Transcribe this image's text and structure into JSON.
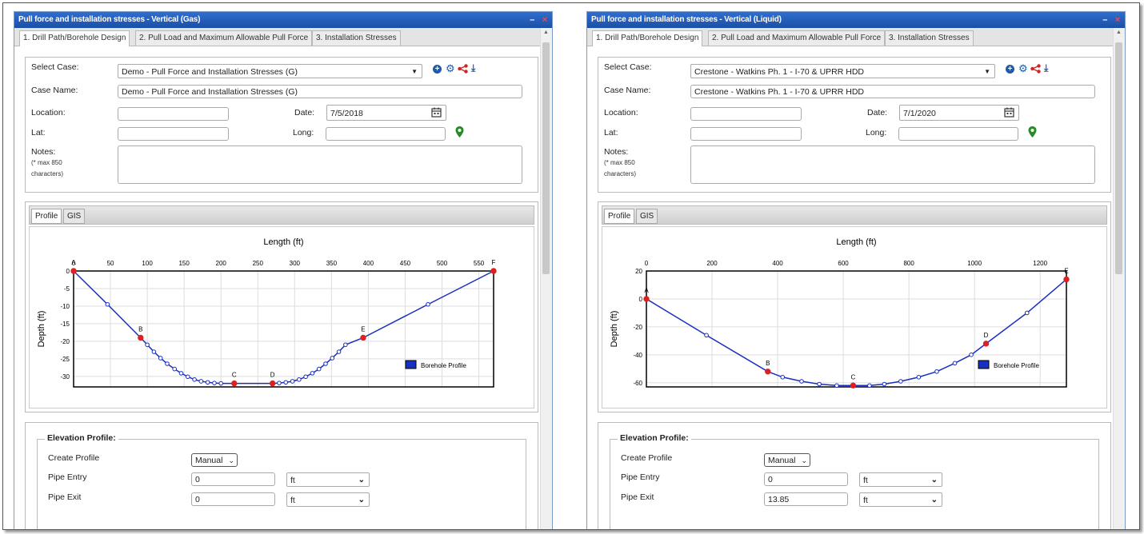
{
  "windows": [
    {
      "id": "left",
      "title": "Pull force and installation stresses - Vertical (Gas)",
      "tabs": [
        "1. Drill Path/Borehole Design",
        "2. Pull Load and Maximum Allowable Pull Force",
        "3. Installation Stresses"
      ],
      "form": {
        "select_case_label": "Select Case:",
        "select_case_value": "Demo - Pull Force and Installation Stresses (G)",
        "case_name_label": "Case Name:",
        "case_name_value": "Demo - Pull Force and Installation Stresses (G)",
        "location_label": "Location:",
        "location_value": "",
        "date_label": "Date:",
        "date_value": "7/5/2018",
        "lat_label": "Lat:",
        "lat_value": "",
        "long_label": "Long:",
        "long_value": "",
        "notes_label": "Notes:",
        "notes_hint_1": "(* max 850",
        "notes_hint_2": "characters)",
        "notes_value": ""
      },
      "chart_tabs": [
        "Profile",
        "GIS"
      ],
      "elevation": {
        "title": "Elevation Profile:",
        "create_profile_label": "Create Profile",
        "create_profile_value": "Manual",
        "pipe_entry_label": "Pipe Entry",
        "pipe_entry_value": "0",
        "pipe_entry_unit": "ft",
        "pipe_exit_label": "Pipe Exit",
        "pipe_exit_value": "0",
        "pipe_exit_unit": "ft"
      }
    },
    {
      "id": "right",
      "title": "Pull force and installation stresses - Vertical (Liquid)",
      "tabs": [
        "1. Drill Path/Borehole Design",
        "2. Pull Load and Maximum Allowable Pull Force",
        "3. Installation Stresses"
      ],
      "form": {
        "select_case_label": "Select Case:",
        "select_case_value": "Crestone - Watkins Ph. 1 - I-70 & UPRR HDD",
        "case_name_label": "Case Name:",
        "case_name_value": "Crestone - Watkins Ph. 1 - I-70 &  UPRR HDD",
        "location_label": "Location:",
        "location_value": "",
        "date_label": "Date:",
        "date_value": "7/1/2020",
        "lat_label": "Lat:",
        "lat_value": "",
        "long_label": "Long:",
        "long_value": "",
        "notes_label": "Notes:",
        "notes_hint_1": "(* max 850",
        "notes_hint_2": "characters)",
        "notes_value": ""
      },
      "chart_tabs": [
        "Profile",
        "GIS"
      ],
      "elevation": {
        "title": "Elevation Profile:",
        "create_profile_label": "Create Profile",
        "create_profile_value": "Manual",
        "pipe_entry_label": "Pipe Entry",
        "pipe_entry_value": "0",
        "pipe_entry_unit": "ft",
        "pipe_exit_label": "Pipe Exit",
        "pipe_exit_value": "13.85",
        "pipe_exit_unit": "ft"
      }
    }
  ],
  "chart_data": [
    {
      "type": "line",
      "title": "Length (ft)",
      "xlabel": "Length (ft)",
      "ylabel": "Depth (ft)",
      "xlim": [
        0,
        570
      ],
      "ylim": [
        -33,
        0
      ],
      "x_ticks": [
        0,
        50,
        100,
        150,
        200,
        250,
        300,
        350,
        400,
        450,
        500,
        550
      ],
      "y_ticks": [
        0,
        -5,
        -10,
        -15,
        -20,
        -25,
        -30
      ],
      "grid": true,
      "legend": "Borehole Profile",
      "legend_position": "bottom-right",
      "colors": {
        "line": "#1a2fbf",
        "point": "#1a2fbf",
        "key_point": "#e02020"
      },
      "series": [
        {
          "name": "Borehole Profile",
          "points": [
            [
              0,
              0
            ],
            [
              46,
              -9.5
            ],
            [
              91,
              -19
            ],
            [
              100,
              -21
            ],
            [
              109,
              -23
            ],
            [
              118,
              -24.8
            ],
            [
              127,
              -26.4
            ],
            [
              137,
              -27.9
            ],
            [
              146,
              -29.1
            ],
            [
              155,
              -30.1
            ],
            [
              164,
              -30.9
            ],
            [
              173,
              -31.4
            ],
            [
              182,
              -31.7
            ],
            [
              191,
              -31.9
            ],
            [
              200,
              -32
            ],
            [
              218,
              -32
            ],
            [
              270,
              -32
            ],
            [
              279,
              -31.9
            ],
            [
              288,
              -31.7
            ],
            [
              297,
              -31.4
            ],
            [
              306,
              -30.9
            ],
            [
              315,
              -30.1
            ],
            [
              324,
              -29.1
            ],
            [
              333,
              -27.9
            ],
            [
              342,
              -26.4
            ],
            [
              351,
              -24.8
            ],
            [
              360,
              -23
            ],
            [
              369,
              -21
            ],
            [
              393,
              -19
            ],
            [
              481,
              -9.5
            ],
            [
              570,
              0
            ]
          ]
        }
      ],
      "key_points": [
        {
          "label": "A",
          "x": 0,
          "y": 0
        },
        {
          "label": "B",
          "x": 91,
          "y": -19
        },
        {
          "label": "C",
          "x": 218,
          "y": -32
        },
        {
          "label": "D",
          "x": 270,
          "y": -32
        },
        {
          "label": "E",
          "x": 393,
          "y": -19
        },
        {
          "label": "F",
          "x": 570,
          "y": 0
        }
      ]
    },
    {
      "type": "line",
      "title": "Length (ft)",
      "xlabel": "Length (ft)",
      "ylabel": "Depth (ft)",
      "xlim": [
        0,
        1280
      ],
      "ylim": [
        -63,
        20
      ],
      "x_ticks": [
        0,
        200,
        400,
        600,
        800,
        1000,
        1200
      ],
      "y_ticks": [
        20,
        0,
        -20,
        -40,
        -60
      ],
      "grid": true,
      "legend": "Borehole Profile",
      "legend_position": "bottom-right",
      "colors": {
        "line": "#1a2fbf",
        "point": "#1a2fbf",
        "key_point": "#e02020"
      },
      "series": [
        {
          "name": "Borehole Profile",
          "points": [
            [
              0,
              0
            ],
            [
              183,
              -26
            ],
            [
              370,
              -52
            ],
            [
              415,
              -56
            ],
            [
              473,
              -59
            ],
            [
              527,
              -61
            ],
            [
              580,
              -62
            ],
            [
              630,
              -62
            ],
            [
              680,
              -62
            ],
            [
              725,
              -61
            ],
            [
              775,
              -59
            ],
            [
              830,
              -56
            ],
            [
              885,
              -52
            ],
            [
              940,
              -46
            ],
            [
              990,
              -40
            ],
            [
              1035,
              -32
            ],
            [
              1160,
              -10
            ],
            [
              1280,
              14
            ]
          ]
        }
      ],
      "key_points": [
        {
          "label": "A",
          "x": 0,
          "y": 0
        },
        {
          "label": "B",
          "x": 370,
          "y": -52
        },
        {
          "label": "C",
          "x": 630,
          "y": -62
        },
        {
          "label": "D",
          "x": 1035,
          "y": -32
        },
        {
          "label": "E",
          "x": 1280,
          "y": 14
        }
      ]
    }
  ]
}
